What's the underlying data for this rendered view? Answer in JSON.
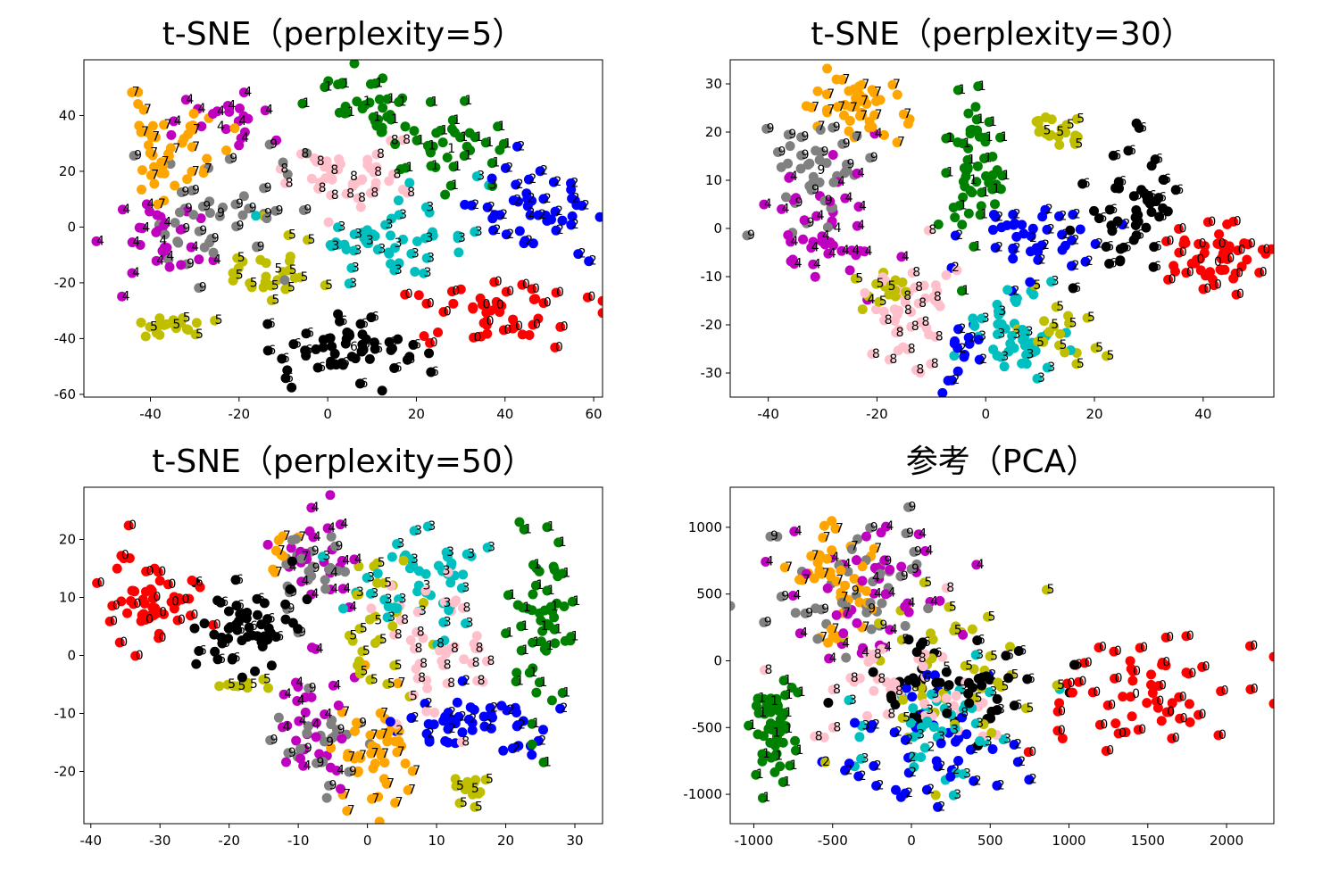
{
  "chart_data": [
    {
      "type": "scatter",
      "title": "t-SNE（perplexity=5）",
      "xlim": [
        -55,
        62
      ],
      "ylim": [
        -61,
        60
      ],
      "xticks": [
        -40,
        -20,
        0,
        20,
        40,
        60
      ],
      "yticks": [
        -60,
        -40,
        -20,
        0,
        20,
        40
      ],
      "grid": false,
      "seed": 11,
      "clusters": [
        {
          "label": 7,
          "cx": -35,
          "cy": 28,
          "sx": 6,
          "sy": 9,
          "n": 45
        },
        {
          "label": 4,
          "cx": -38,
          "cy": -5,
          "sx": 6,
          "sy": 7,
          "n": 30
        },
        {
          "label": 4,
          "cx": -25,
          "cy": 36,
          "sx": 5,
          "sy": 5,
          "n": 20
        },
        {
          "label": 9,
          "cx": -25,
          "cy": 5,
          "sx": 7,
          "sy": 12,
          "n": 45
        },
        {
          "label": 1,
          "cx": 8,
          "cy": 45,
          "sx": 6,
          "sy": 6,
          "n": 35
        },
        {
          "label": 1,
          "cx": 27,
          "cy": 28,
          "sx": 6,
          "sy": 8,
          "n": 35
        },
        {
          "label": 8,
          "cx": 5,
          "cy": 18,
          "sx": 7,
          "sy": 8,
          "n": 45
        },
        {
          "label": 3,
          "cx": 15,
          "cy": -6,
          "sx": 9,
          "sy": 7,
          "n": 50
        },
        {
          "label": 2,
          "cx": 45,
          "cy": 5,
          "sx": 7,
          "sy": 8,
          "n": 45
        },
        {
          "label": 0,
          "cx": 38,
          "cy": -28,
          "sx": 10,
          "sy": 6,
          "n": 50
        },
        {
          "label": 6,
          "cx": 5,
          "cy": -43,
          "sx": 9,
          "sy": 6,
          "n": 55
        },
        {
          "label": 5,
          "cx": -12,
          "cy": -15,
          "sx": 6,
          "sy": 6,
          "n": 30
        },
        {
          "label": 5,
          "cx": -35,
          "cy": -35,
          "sx": 5,
          "sy": 2,
          "n": 20
        }
      ]
    },
    {
      "type": "scatter",
      "title": "t-SNE（perplexity=30）",
      "xlim": [
        -47,
        53
      ],
      "ylim": [
        -35,
        35
      ],
      "xticks": [
        -40,
        -20,
        0,
        20,
        40
      ],
      "yticks": [
        -30,
        -20,
        -10,
        0,
        10,
        20,
        30
      ],
      "grid": false,
      "seed": 23,
      "clusters": [
        {
          "label": 7,
          "cx": -25,
          "cy": 25,
          "sx": 5,
          "sy": 4,
          "n": 45
        },
        {
          "label": 9,
          "cx": -31,
          "cy": 12,
          "sx": 5,
          "sy": 6,
          "n": 40
        },
        {
          "label": 4,
          "cx": -28,
          "cy": 0,
          "sx": 6,
          "sy": 6,
          "n": 45
        },
        {
          "label": 1,
          "cx": -3,
          "cy": 10,
          "sx": 2.5,
          "sy": 9,
          "n": 55
        },
        {
          "label": 5,
          "cx": 13,
          "cy": 20,
          "sx": 3,
          "sy": 2,
          "n": 20
        },
        {
          "label": 5,
          "cx": -18,
          "cy": -12,
          "sx": 3,
          "sy": 2,
          "n": 15
        },
        {
          "label": 5,
          "cx": 12,
          "cy": -20,
          "sx": 3,
          "sy": 4,
          "n": 20
        },
        {
          "label": 6,
          "cx": 27,
          "cy": 3,
          "sx": 4,
          "sy": 8,
          "n": 50
        },
        {
          "label": 0,
          "cx": 42,
          "cy": -7,
          "sx": 4,
          "sy": 4,
          "n": 55
        },
        {
          "label": 2,
          "cx": 8,
          "cy": -2,
          "sx": 6,
          "sy": 4,
          "n": 40
        },
        {
          "label": 2,
          "cx": -5,
          "cy": -25,
          "sx": 1.5,
          "sy": 4,
          "n": 15
        },
        {
          "label": 8,
          "cx": -15,
          "cy": -17,
          "sx": 4,
          "sy": 5,
          "n": 45
        },
        {
          "label": 3,
          "cx": 5,
          "cy": -22,
          "sx": 4,
          "sy": 4,
          "n": 50
        }
      ]
    },
    {
      "type": "scatter",
      "title": "t-SNE（perplexity=50）",
      "xlim": [
        -41,
        34
      ],
      "ylim": [
        -29,
        29
      ],
      "xticks": [
        -40,
        -30,
        -20,
        -10,
        0,
        10,
        20,
        30
      ],
      "yticks": [
        -20,
        -10,
        0,
        10,
        20
      ],
      "grid": false,
      "seed": 37,
      "clusters": [
        {
          "label": 0,
          "cx": -31,
          "cy": 10,
          "sx": 3,
          "sy": 4,
          "n": 55
        },
        {
          "label": 6,
          "cx": -17,
          "cy": 5,
          "sx": 4,
          "sy": 4,
          "n": 55
        },
        {
          "label": 9,
          "cx": -8,
          "cy": 15,
          "sx": 3,
          "sy": 4,
          "n": 25
        },
        {
          "label": 9,
          "cx": -6,
          "cy": -15,
          "sx": 3,
          "sy": 4,
          "n": 25
        },
        {
          "label": 4,
          "cx": -7,
          "cy": 16,
          "sx": 3,
          "sy": 4,
          "n": 25
        },
        {
          "label": 4,
          "cx": -8,
          "cy": -12,
          "sx": 3,
          "sy": 6,
          "n": 30
        },
        {
          "label": 7,
          "cx": -13,
          "cy": 18,
          "sx": 2,
          "sy": 1.5,
          "n": 10
        },
        {
          "label": 7,
          "cx": 2,
          "cy": -17,
          "sx": 3,
          "sy": 5,
          "n": 45
        },
        {
          "label": 5,
          "cx": 1,
          "cy": 6,
          "sx": 3,
          "sy": 7,
          "n": 30
        },
        {
          "label": 5,
          "cx": 15,
          "cy": -23,
          "sx": 1.5,
          "sy": 1.5,
          "n": 15
        },
        {
          "label": 5,
          "cx": -17,
          "cy": -5,
          "sx": 3,
          "sy": 0.8,
          "n": 10
        },
        {
          "label": 3,
          "cx": 8,
          "cy": 12,
          "sx": 5,
          "sy": 5,
          "n": 50
        },
        {
          "label": 8,
          "cx": 10,
          "cy": 2,
          "sx": 4,
          "sy": 6,
          "n": 45
        },
        {
          "label": 1,
          "cx": 25,
          "cy": 5,
          "sx": 2,
          "sy": 8,
          "n": 55
        },
        {
          "label": 2,
          "cx": 17,
          "cy": -12,
          "sx": 6,
          "sy": 3,
          "n": 50
        }
      ]
    },
    {
      "type": "scatter",
      "title": "参考（PCA）",
      "xlim": [
        -1150,
        2300
      ],
      "ylim": [
        -1220,
        1300
      ],
      "xticks": [
        -1000,
        -500,
        0,
        500,
        1000,
        1500,
        2000
      ],
      "yticks": [
        -1000,
        -500,
        0,
        500,
        1000
      ],
      "grid": false,
      "seed": 53,
      "clusters": [
        {
          "label": 1,
          "cx": -880,
          "cy": -540,
          "sx": 70,
          "sy": 170,
          "n": 55
        },
        {
          "label": 7,
          "cx": -480,
          "cy": 600,
          "sx": 150,
          "sy": 250,
          "n": 45
        },
        {
          "label": 4,
          "cx": -250,
          "cy": 620,
          "sx": 250,
          "sy": 280,
          "n": 45
        },
        {
          "label": 9,
          "cx": -380,
          "cy": 520,
          "sx": 240,
          "sy": 260,
          "n": 45
        },
        {
          "label": 0,
          "cx": 1400,
          "cy": -250,
          "sx": 330,
          "sy": 200,
          "n": 60
        },
        {
          "label": 2,
          "cx": 100,
          "cy": -650,
          "sx": 280,
          "sy": 280,
          "n": 45
        },
        {
          "label": 3,
          "cx": 250,
          "cy": -520,
          "sx": 300,
          "sy": 230,
          "n": 45
        },
        {
          "label": 6,
          "cx": 200,
          "cy": -200,
          "sx": 300,
          "sy": 200,
          "n": 50
        },
        {
          "label": 5,
          "cx": 200,
          "cy": -50,
          "sx": 300,
          "sy": 280,
          "n": 45
        },
        {
          "label": 8,
          "cx": 0,
          "cy": -200,
          "sx": 300,
          "sy": 230,
          "n": 45
        }
      ]
    }
  ],
  "labels": [
    "0",
    "1",
    "2",
    "3",
    "4",
    "5",
    "6",
    "7",
    "8",
    "9"
  ],
  "colors": {
    "0": "#ff0000",
    "1": "#008000",
    "2": "#0000ff",
    "3": "#00bfbf",
    "4": "#bf00bf",
    "5": "#bfbf00",
    "6": "#000000",
    "7": "#ffa500",
    "8": "#ffc0cb",
    "9": "#808080"
  }
}
